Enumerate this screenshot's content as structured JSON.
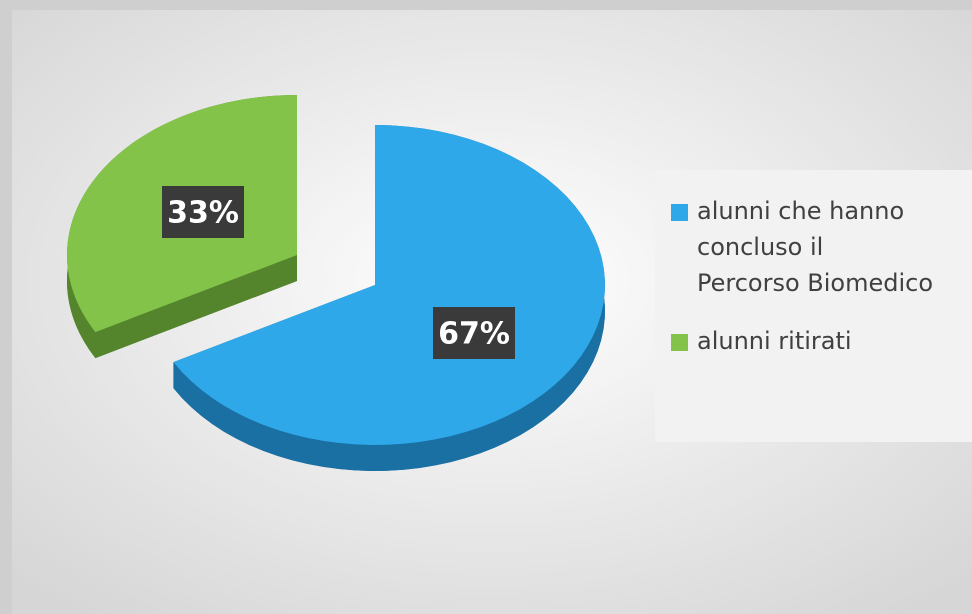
{
  "chart_data": {
    "type": "pie",
    "categories": [
      "alunni che hanno concluso il Percorso Biomedico",
      "alunni ritirati"
    ],
    "values": [
      67,
      33
    ],
    "value_labels": [
      "67%",
      "33%"
    ],
    "colors": [
      "#2ea8e8",
      "#84c34a"
    ],
    "side_colors": [
      "#1a6fa3",
      "#54852c"
    ],
    "legend": "right"
  }
}
